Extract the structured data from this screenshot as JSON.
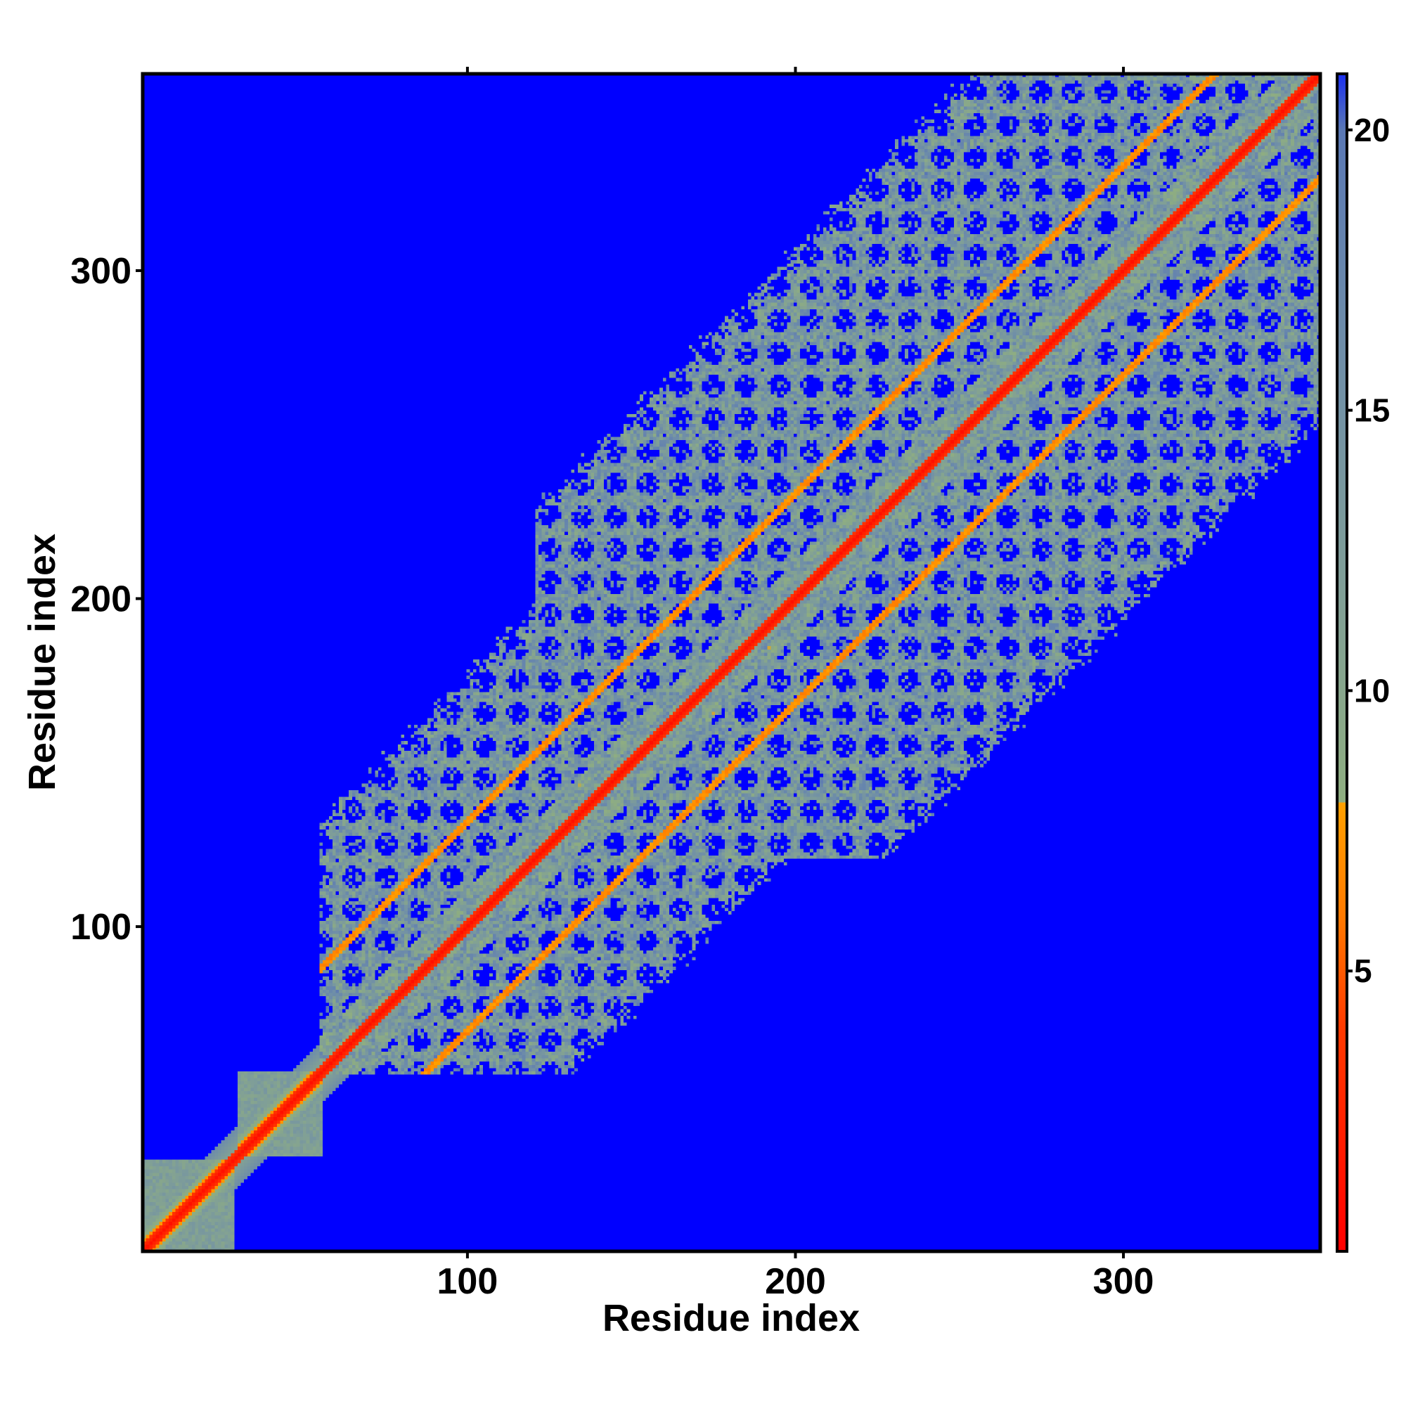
{
  "chart_data": {
    "type": "heatmap",
    "title": "",
    "xlabel": "Residue index",
    "ylabel": "Residue index",
    "n_residues": 360,
    "xlim": [
      1,
      360
    ],
    "ylim": [
      1,
      360
    ],
    "x_ticks": [
      100,
      200,
      300
    ],
    "y_ticks": [
      100,
      200,
      300
    ],
    "colorbar": {
      "ticks": [
        5,
        10,
        15,
        20
      ],
      "range": [
        0,
        21
      ],
      "stops": [
        {
          "value": 0,
          "color": "#ff0000"
        },
        {
          "value": 4,
          "color": "#ff3a00"
        },
        {
          "value": 6,
          "color": "#ff7a00"
        },
        {
          "value": 8,
          "color": "#ffa000"
        },
        {
          "value": 8.01,
          "color": "#8fae80"
        },
        {
          "value": 12,
          "color": "#7f9e98"
        },
        {
          "value": 16,
          "color": "#6f8ea8"
        },
        {
          "value": 20,
          "color": "#5a78b4"
        },
        {
          "value": 21,
          "color": "#1a2ff0"
        }
      ]
    },
    "cutoff_color": "#0000ff",
    "description_of_values": "pairwise distance map; values above ~21 shown saturated blue",
    "structure": {
      "diagonal_band_width": 2,
      "orange_offset_bands": [
        32,
        -32
      ],
      "contact_region_start": 60,
      "early_segments": [
        [
          1,
          28
        ],
        [
          30,
          55
        ]
      ],
      "repeat_period": 20,
      "grid_background_color": "#0000ff"
    }
  }
}
